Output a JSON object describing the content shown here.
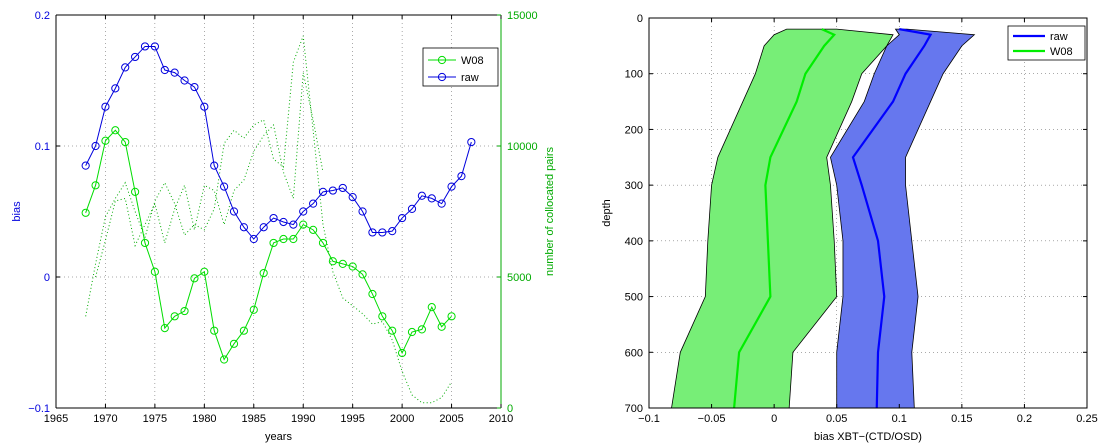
{
  "chart_data": [
    {
      "type": "line",
      "xlabel": "years",
      "ylabel": "bias",
      "y2label": "number of collocated pairs",
      "xlim": [
        1965,
        2010
      ],
      "ylim": [
        -0.1,
        0.2
      ],
      "y2lim": [
        0,
        15000
      ],
      "xticks": [
        1965,
        1970,
        1975,
        1980,
        1985,
        1990,
        1995,
        2000,
        2005,
        2010
      ],
      "yticks": [
        -0.1,
        0,
        0.1,
        0.2
      ],
      "y2ticks": [
        0,
        5000,
        10000,
        15000
      ],
      "grid": true,
      "legend_position": "top-right",
      "series": [
        {
          "name": "W08",
          "color": "#00dd00",
          "marker": "circle",
          "x": [
            1968,
            1969,
            1970,
            1971,
            1972,
            1973,
            1974,
            1975,
            1976,
            1977,
            1978,
            1979,
            1980,
            1981,
            1982,
            1983,
            1984,
            1985,
            1986,
            1987,
            1988,
            1989,
            1990,
            1991,
            1992,
            1993,
            1994,
            1995,
            1996,
            1997,
            1998,
            1999,
            2000,
            2001,
            2002,
            2003,
            2004,
            2005
          ],
          "values": [
            0.049,
            0.07,
            0.104,
            0.112,
            0.103,
            0.065,
            0.026,
            0.004,
            -0.039,
            -0.03,
            -0.026,
            -0.001,
            0.004,
            -0.041,
            -0.063,
            -0.051,
            -0.041,
            -0.025,
            0.003,
            0.026,
            0.029,
            0.029,
            0.04,
            0.036,
            0.026,
            0.012,
            0.01,
            0.008,
            0.002,
            -0.013,
            -0.03,
            -0.041,
            -0.058,
            -0.042,
            -0.04,
            -0.023,
            -0.038,
            -0.03
          ]
        },
        {
          "name": "raw",
          "color": "#0000dd",
          "marker": "circle",
          "x": [
            1968,
            1969,
            1970,
            1971,
            1972,
            1973,
            1974,
            1975,
            1976,
            1977,
            1978,
            1979,
            1980,
            1981,
            1982,
            1983,
            1984,
            1985,
            1986,
            1987,
            1988,
            1989,
            1990,
            1991,
            1992,
            1993,
            1994,
            1995,
            1996,
            1997,
            1998,
            1999,
            2000,
            2001,
            2002,
            2003,
            2004,
            2005,
            2006,
            2007
          ],
          "values": [
            0.085,
            0.1,
            0.13,
            0.144,
            0.16,
            0.168,
            0.176,
            0.176,
            0.158,
            0.156,
            0.15,
            0.145,
            0.13,
            0.085,
            0.069,
            0.05,
            0.038,
            0.029,
            0.038,
            0.045,
            0.042,
            0.04,
            0.05,
            0.056,
            0.065,
            0.066,
            0.068,
            0.061,
            0.05,
            0.034,
            0.034,
            0.035,
            0.045,
            0.052,
            0.062,
            0.06,
            0.056,
            0.069,
            0.077,
            0.103
          ]
        },
        {
          "color": "#00aa00",
          "style": "dotted",
          "axis": "right",
          "x": [
            1968,
            1969,
            1970,
            1971,
            1972,
            1973,
            1974,
            1975,
            1976,
            1977,
            1978,
            1979,
            1980,
            1981,
            1982,
            1983,
            1984,
            1985,
            1986,
            1987,
            1988,
            1989,
            1990,
            1991,
            1992,
            1993,
            1994,
            1995,
            1996,
            1997,
            1998,
            1999,
            2000,
            2001,
            2002,
            2003,
            2004,
            2005
          ],
          "values": [
            3500,
            5500,
            7300,
            8000,
            8600,
            7500,
            6500,
            7900,
            8600,
            7800,
            6600,
            7000,
            6800,
            7600,
            10100,
            10600,
            10300,
            10800,
            11000,
            9500,
            9200,
            13200,
            14200,
            10600,
            7000,
            5200,
            4200,
            3900,
            3600,
            3200,
            3300,
            2600,
            1400,
            500,
            200,
            200,
            400,
            1000
          ]
        },
        {
          "color": "#00aa00",
          "style": "dotted",
          "axis": "right",
          "x": [
            1969,
            1970,
            1971,
            1972,
            1973,
            1974,
            1975,
            1976,
            1977,
            1978,
            1979,
            1980,
            1981,
            1982,
            1983,
            1984,
            1985,
            1986,
            1987,
            1988,
            1989,
            1990,
            1991,
            1992
          ],
          "values": [
            5000,
            6400,
            7900,
            8000,
            6200,
            7000,
            7800,
            6300,
            7600,
            8500,
            6800,
            8500,
            8300,
            7000,
            8300,
            8700,
            9800,
            10400,
            10800,
            9000,
            8000,
            12800,
            11000,
            9000
          ]
        }
      ]
    },
    {
      "type": "area",
      "xlabel": "bias XBT−(CTD/OSD)",
      "ylabel": "depth",
      "xlim": [
        -0.1,
        0.25
      ],
      "ylim": [
        0,
        700
      ],
      "y_reversed": true,
      "xticks": [
        -0.1,
        -0.05,
        0,
        0.05,
        0.1,
        0.15,
        0.2,
        0.25
      ],
      "yticks": [
        0,
        100,
        200,
        300,
        400,
        500,
        600,
        700
      ],
      "grid": true,
      "legend_position": "top-right",
      "series": [
        {
          "name": "raw",
          "color": "#0000ff",
          "fill": "#6677ee",
          "depth": [
            20,
            30,
            50,
            100,
            150,
            250,
            300,
            400,
            500,
            600,
            700
          ],
          "values": [
            0.1,
            0.125,
            0.12,
            0.105,
            0.095,
            0.063,
            0.07,
            0.083,
            0.088,
            0.083,
            0.082
          ],
          "lower": [
            0.097,
            0.1,
            0.09,
            0.08,
            0.072,
            0.045,
            0.05,
            0.055,
            0.055,
            0.05,
            0.05
          ],
          "upper": [
            0.106,
            0.16,
            0.15,
            0.135,
            0.125,
            0.105,
            0.105,
            0.11,
            0.115,
            0.11,
            0.112
          ]
        },
        {
          "name": "W08",
          "color": "#00ee00",
          "fill": "#77ee77",
          "depth": [
            20,
            30,
            50,
            100,
            150,
            250,
            300,
            400,
            500,
            600,
            700
          ],
          "values": [
            0.038,
            0.048,
            0.04,
            0.025,
            0.018,
            -0.003,
            -0.007,
            -0.005,
            -0.003,
            -0.028,
            -0.032
          ],
          "lower": [
            0.01,
            0.0,
            -0.008,
            -0.015,
            -0.025,
            -0.045,
            -0.05,
            -0.053,
            -0.055,
            -0.075,
            -0.082
          ],
          "upper": [
            0.05,
            0.095,
            0.09,
            0.07,
            0.062,
            0.042,
            0.045,
            0.048,
            0.05,
            0.015,
            0.012
          ]
        }
      ]
    }
  ]
}
